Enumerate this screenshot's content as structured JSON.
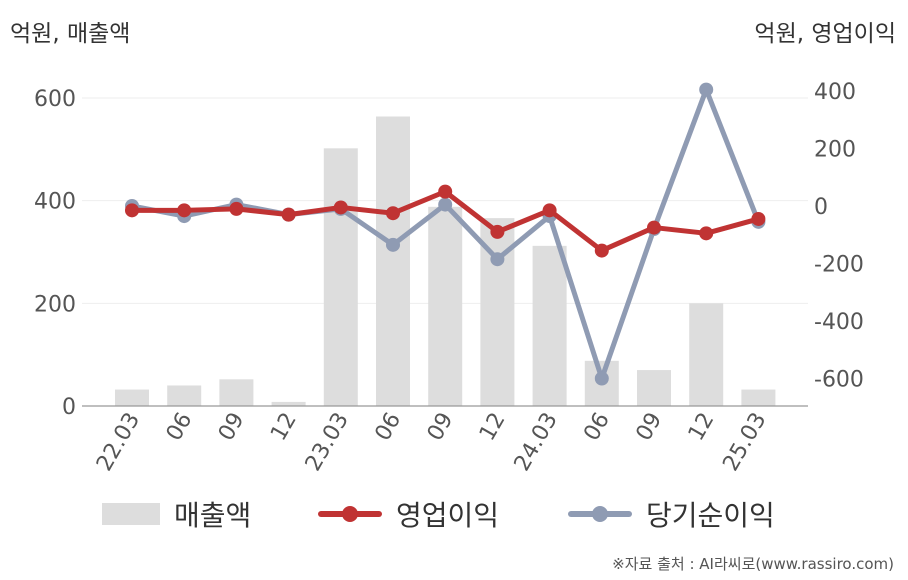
{
  "units": {
    "left": "억원, 매출액",
    "right": "억원, 영업이익"
  },
  "chart_data": {
    "type": "bar+line",
    "categories": [
      "22.03",
      "06",
      "09",
      "12",
      "23.03",
      "06",
      "09",
      "12",
      "24.03",
      "06",
      "09",
      "12",
      "25.03"
    ],
    "left_axis": {
      "ylim": [
        0,
        700
      ],
      "ticks": [
        0,
        200,
        400,
        600
      ]
    },
    "right_axis": {
      "ylim": [
        -700,
        450
      ],
      "ticks": [
        -600,
        -400,
        -200,
        0,
        200,
        400
      ]
    },
    "grid": "horizontal",
    "legend_position": "bottom",
    "series": [
      {
        "name": "매출액",
        "type": "bar",
        "axis": "left",
        "color": "#dddddd",
        "values": [
          32,
          40,
          52,
          8,
          502,
          564,
          388,
          366,
          312,
          88,
          70,
          200,
          32
        ]
      },
      {
        "name": "영업이익",
        "type": "line",
        "axis": "right",
        "color": "#c03333",
        "values": [
          -15,
          -15,
          -10,
          -30,
          -5,
          -25,
          50,
          -90,
          -15,
          -155,
          -75,
          -95,
          -45
        ]
      },
      {
        "name": "당기순이익",
        "type": "line",
        "axis": "right",
        "color": "#8f9bb3",
        "values": [
          0,
          -35,
          5,
          -30,
          -10,
          -135,
          5,
          -185,
          -35,
          -600,
          -80,
          405,
          -55
        ]
      }
    ]
  },
  "legend": [
    {
      "label": "매출액"
    },
    {
      "label": "영업이익"
    },
    {
      "label": "당기순이익"
    }
  ],
  "colors": {
    "bar": "#dddddd",
    "operating": "#c03333",
    "net": "#8f9bb3"
  },
  "source": "※자료 출처 : AI라씨로(www.rassiro.com)"
}
